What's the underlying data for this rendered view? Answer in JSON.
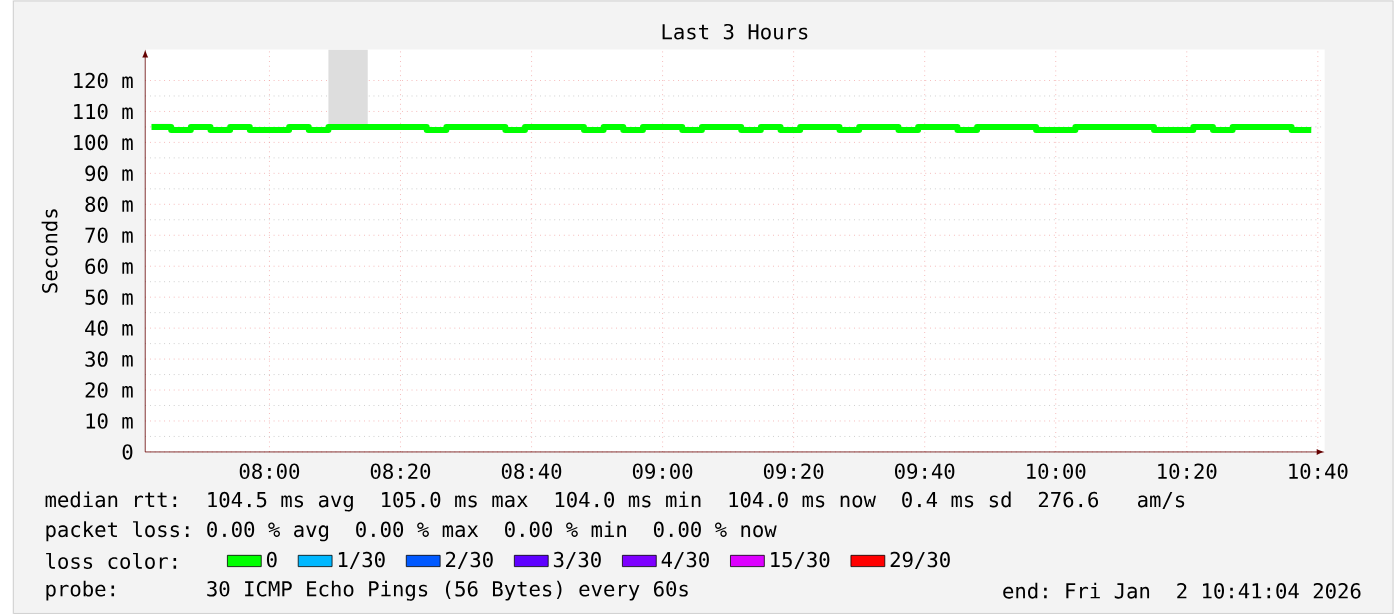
{
  "chart_data": {
    "type": "step",
    "title": "Last 3 Hours",
    "ylabel": "Seconds",
    "xlim": [
      7.684,
      10.684
    ],
    "xticks": [
      {
        "value": 8.0,
        "label": "08:00"
      },
      {
        "value": 8.3333,
        "label": "08:20"
      },
      {
        "value": 8.6667,
        "label": "08:40"
      },
      {
        "value": 9.0,
        "label": "09:00"
      },
      {
        "value": 9.3333,
        "label": "09:20"
      },
      {
        "value": 9.6667,
        "label": "09:40"
      },
      {
        "value": 10.0,
        "label": "10:00"
      },
      {
        "value": 10.3333,
        "label": "10:20"
      },
      {
        "value": 10.6667,
        "label": "10:40"
      }
    ],
    "ylim": [
      0,
      130
    ],
    "yticks": [
      {
        "value": 0,
        "label": "0"
      },
      {
        "value": 10,
        "label": "10 m"
      },
      {
        "value": 20,
        "label": "20 m"
      },
      {
        "value": 30,
        "label": "30 m"
      },
      {
        "value": 40,
        "label": "40 m"
      },
      {
        "value": 50,
        "label": "50 m"
      },
      {
        "value": 60,
        "label": "60 m"
      },
      {
        "value": 70,
        "label": "70 m"
      },
      {
        "value": 80,
        "label": "80 m"
      },
      {
        "value": 90,
        "label": "90 m"
      },
      {
        "value": 100,
        "label": "100 m"
      },
      {
        "value": 110,
        "label": "110 m"
      },
      {
        "value": 120,
        "label": "120 m"
      }
    ],
    "x": [
      7.7,
      7.75,
      7.8,
      7.85,
      7.9,
      7.95,
      8.0,
      8.05,
      8.1,
      8.15,
      8.2,
      8.25,
      8.3,
      8.35,
      8.4,
      8.45,
      8.5,
      8.55,
      8.6,
      8.65,
      8.7,
      8.75,
      8.8,
      8.85,
      8.9,
      8.95,
      9.0,
      9.05,
      9.1,
      9.15,
      9.2,
      9.25,
      9.3,
      9.35,
      9.4,
      9.45,
      9.5,
      9.55,
      9.6,
      9.65,
      9.7,
      9.75,
      9.8,
      9.85,
      9.9,
      9.95,
      10.0,
      10.05,
      10.1,
      10.15,
      10.2,
      10.25,
      10.3,
      10.35,
      10.4,
      10.45,
      10.5,
      10.55,
      10.6,
      10.65
    ],
    "series": [
      {
        "name": "0",
        "color": "#00ff00",
        "values": [
          105,
          104,
          105,
          104,
          105,
          104,
          104,
          105,
          104,
          105,
          105,
          105,
          105,
          105,
          104,
          105,
          105,
          105,
          104,
          105,
          105,
          105,
          104,
          105,
          104,
          105,
          105,
          104,
          105,
          105,
          104,
          105,
          104,
          105,
          105,
          104,
          105,
          105,
          104,
          105,
          105,
          104,
          105,
          105,
          105,
          104,
          104,
          105,
          105,
          105,
          105,
          104,
          104,
          105,
          104,
          105,
          105,
          105,
          104,
          104
        ],
        "lower": [
          105,
          104,
          105,
          104,
          105,
          104,
          104,
          105,
          104,
          105,
          105,
          105,
          105,
          105,
          104,
          105,
          105,
          105,
          104,
          105,
          105,
          105,
          104,
          105,
          104,
          105,
          105,
          104,
          105,
          105,
          104,
          105,
          104,
          105,
          105,
          104,
          105,
          105,
          104,
          105,
          105,
          104,
          105,
          105,
          105,
          104,
          104,
          105,
          105,
          105,
          105,
          104,
          104,
          105,
          104,
          105,
          105,
          105,
          104,
          104
        ],
        "upper": [
          106,
          105,
          105,
          105,
          105,
          105,
          105,
          105,
          105,
          130,
          130,
          105,
          105,
          105,
          105,
          105,
          105,
          105,
          105,
          105,
          105,
          105,
          105,
          105,
          105,
          105,
          105,
          105,
          105,
          105,
          105,
          105,
          105,
          105,
          105,
          105,
          105,
          105,
          105,
          105,
          105,
          105,
          105,
          105,
          105,
          105,
          105,
          105,
          105,
          105,
          105,
          105,
          105,
          105,
          105,
          105,
          105,
          105,
          105,
          106
        ]
      },
      {
        "name": "1/30",
        "color": "#00b8ff",
        "values": [
          null,
          null,
          null,
          null,
          null,
          null,
          null,
          null,
          null,
          null,
          null,
          null,
          null,
          null,
          null,
          null,
          null,
          null,
          null,
          null,
          null,
          null,
          null,
          null,
          null,
          null,
          null,
          null,
          null,
          null,
          null,
          null,
          null,
          null,
          null,
          null,
          null,
          null,
          null,
          null,
          null,
          null,
          null,
          null,
          null,
          null,
          null,
          null,
          null,
          null,
          null,
          null,
          null,
          null,
          null,
          null,
          null,
          null,
          null,
          null
        ]
      },
      {
        "name": "2/30",
        "color": "#0059ff",
        "values": [
          null,
          null,
          null,
          null,
          null,
          null,
          null,
          null,
          null,
          null,
          null,
          null,
          null,
          null,
          null,
          null,
          null,
          null,
          null,
          null,
          null,
          null,
          null,
          null,
          null,
          null,
          null,
          null,
          null,
          null,
          null,
          null,
          null,
          null,
          null,
          null,
          null,
          null,
          null,
          null,
          null,
          null,
          null,
          null,
          null,
          null,
          null,
          null,
          null,
          null,
          null,
          null,
          null,
          null,
          null,
          null,
          null,
          null,
          null,
          null
        ]
      },
      {
        "name": "3/30",
        "color": "#5e00ff",
        "values": [
          null,
          null,
          null,
          null,
          null,
          null,
          null,
          null,
          null,
          null,
          null,
          null,
          null,
          null,
          null,
          null,
          null,
          null,
          null,
          null,
          null,
          null,
          null,
          null,
          null,
          null,
          null,
          null,
          null,
          null,
          null,
          null,
          null,
          null,
          null,
          null,
          null,
          null,
          null,
          null,
          null,
          null,
          null,
          null,
          null,
          null,
          null,
          null,
          null,
          null,
          null,
          null,
          null,
          null,
          null,
          null,
          null,
          null,
          null,
          null
        ]
      },
      {
        "name": "4/30",
        "color": "#7e00ff",
        "values": [
          null,
          null,
          null,
          null,
          null,
          null,
          null,
          null,
          null,
          null,
          null,
          null,
          null,
          null,
          null,
          null,
          null,
          null,
          null,
          null,
          null,
          null,
          null,
          null,
          null,
          null,
          null,
          null,
          null,
          null,
          null,
          null,
          null,
          null,
          null,
          null,
          null,
          null,
          null,
          null,
          null,
          null,
          null,
          null,
          null,
          null,
          null,
          null,
          null,
          null,
          null,
          null,
          null,
          null,
          null,
          null,
          null,
          null,
          null,
          null
        ]
      },
      {
        "name": "15/30",
        "color": "#dd00ff",
        "values": [
          null,
          null,
          null,
          null,
          null,
          null,
          null,
          null,
          null,
          null,
          null,
          null,
          null,
          null,
          null,
          null,
          null,
          null,
          null,
          null,
          null,
          null,
          null,
          null,
          null,
          null,
          null,
          null,
          null,
          null,
          null,
          null,
          null,
          null,
          null,
          null,
          null,
          null,
          null,
          null,
          null,
          null,
          null,
          null,
          null,
          null,
          null,
          null,
          null,
          null,
          null,
          null,
          null,
          null,
          null,
          null,
          null,
          null,
          null,
          null
        ]
      },
      {
        "name": "29/30",
        "color": "#ff0000",
        "values": [
          null,
          null,
          null,
          null,
          null,
          null,
          null,
          null,
          null,
          null,
          null,
          null,
          null,
          null,
          null,
          null,
          null,
          null,
          null,
          null,
          null,
          null,
          null,
          null,
          null,
          null,
          null,
          null,
          null,
          null,
          null,
          null,
          null,
          null,
          null,
          null,
          null,
          null,
          null,
          null,
          null,
          null,
          null,
          null,
          null,
          null,
          null,
          null,
          null,
          null,
          null,
          null,
          null,
          null,
          null,
          null,
          null,
          null,
          null,
          null
        ]
      }
    ],
    "legend": "bottom",
    "legend_title": "loss color:",
    "grid": true,
    "annotations": [
      "median rtt:  104.5 ms avg  105.0 ms max  104.0 ms min  104.0 ms now  0.4 ms sd  276.6   am/s",
      "packet loss: 0.00 % avg  0.00 % max  0.00 % min  0.00 % now",
      "probe:       30 ICMP Echo Pings (56 Bytes) every 60s",
      "end: Fri Jan  2 10:41:04 2026"
    ]
  }
}
